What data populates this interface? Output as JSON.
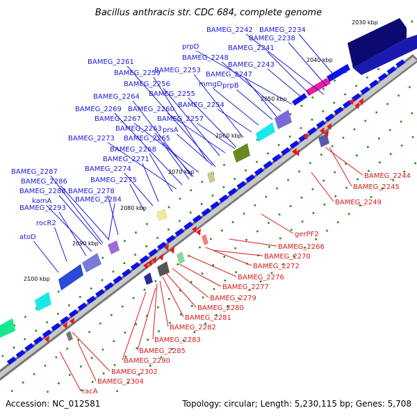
{
  "title": "Bacillus anthracis str. CDC 684, complete genome",
  "footer": {
    "accession": "Accession: NC_012581",
    "summary": "Topology: circular; Length: 5,230,115 bp; Genes: 5,708"
  },
  "kbp_ticks": [
    "2030 kbp",
    "2040 kbp",
    "2050 kbp",
    "2060 kbp",
    "2070 kbp",
    "2080 kbp",
    "2090 kbp",
    "2100 kbp"
  ],
  "plus_labels": [
    "BAMEG_2242",
    "BAMEG_2234",
    "BAMEG_2238",
    "prpD",
    "BAMEG_2241",
    "BAMEG_2248",
    "BAMEG_2243",
    "BAMEG_2261",
    "BAMEG_2253",
    "BAMEG_2247",
    "BAMEG_2259",
    "mmgD",
    "prpB",
    "BAMEG_2256",
    "BAMEG_2255",
    "BAMEG_2264",
    "BAMEG_2254",
    "BAMEG_2269",
    "BAMEG_2260",
    "BAMEG_2267",
    "BAMEG_2257",
    "BAMEG_2263",
    "prsA",
    "BAMEG_2265",
    "BAMEG_2273",
    "BAMEG_2268",
    "BAMEG_2271",
    "BAMEG_2274",
    "BAMEG_2287",
    "BAMEG_2275",
    "BAMEG_2286",
    "BAMEG_2288",
    "BAMEG_2278",
    "kamA",
    "BAMEG_2284",
    "BAMEG_2293",
    "rocR2",
    "atoD"
  ],
  "minus_labels": [
    "BAMEG_2244",
    "BAMEG_2245",
    "BAMEG_2249",
    "gerPF2",
    "BAMEG_2266",
    "BAMEG_2270",
    "BAMEG_2272",
    "BAMEG_2276",
    "BAMEG_2277",
    "BAMEG_2279",
    "BAMEG_2280",
    "BAMEG_2281",
    "BAMEG_2282",
    "BAMEG_2283",
    "BAMEG_2285",
    "BAMEG_2290",
    "BAMEG_2302",
    "BAMEG_2304",
    "racA"
  ],
  "colors": {
    "plus_gene": "#0a12e8",
    "minus_gene": "#e81818",
    "plus_label": "#1a1ad6",
    "minus_label": "#d61a1a",
    "backbone": "#9a9a9a",
    "tick": "#1f8a1f",
    "dark_gene": "#0a0a70",
    "magenta_gene": "#ee1c9a",
    "cyan_gene": "#18e8e8",
    "olive_gene": "#6a8a20",
    "purple_gene": "#7a6ad8"
  }
}
